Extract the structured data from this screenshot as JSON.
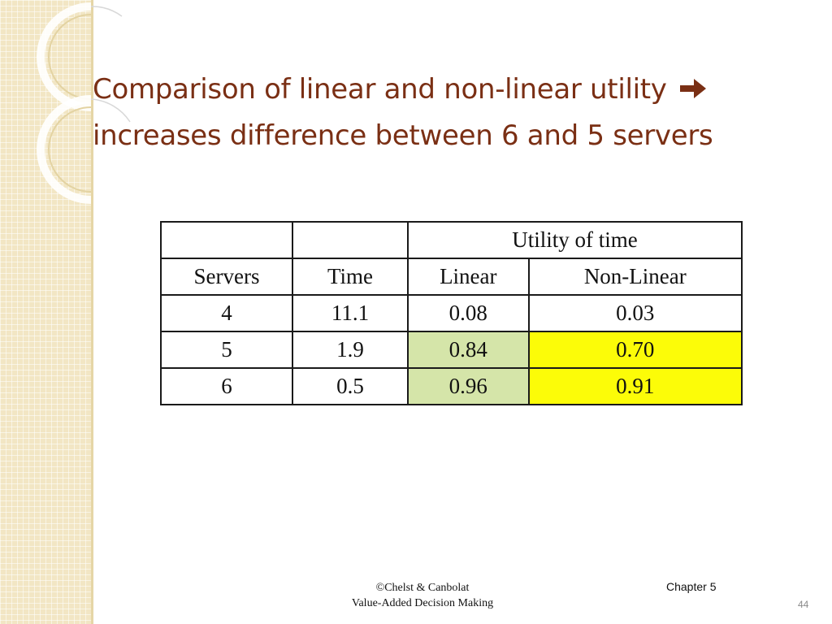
{
  "slide": {
    "title_line1": "Comparison of linear and non-linear utility",
    "title_line2": "increases difference between 6 and 5 servers",
    "title_arrow_icon": "right-arrow-icon",
    "title_color": "#7a2f14"
  },
  "table": {
    "group_header": "Utility of time",
    "columns": [
      "Servers",
      "Time",
      "Linear",
      "Non-Linear"
    ],
    "rows": [
      {
        "servers": "4",
        "time": "11.1",
        "linear": "0.08",
        "nonlinear": "0.03"
      },
      {
        "servers": "5",
        "time": "1.9",
        "linear": "0.84",
        "nonlinear": "0.70"
      },
      {
        "servers": "6",
        "time": "0.5",
        "linear": "0.96",
        "nonlinear": "0.91"
      }
    ],
    "highlight_colors": {
      "linear": "#d5e5a9",
      "nonlinear": "#fcfc08"
    }
  },
  "footer": {
    "copyright": "©Chelst & Canbolat",
    "book": "Value-Added Decision Making",
    "chapter": "Chapter 5",
    "page_number": "44"
  }
}
